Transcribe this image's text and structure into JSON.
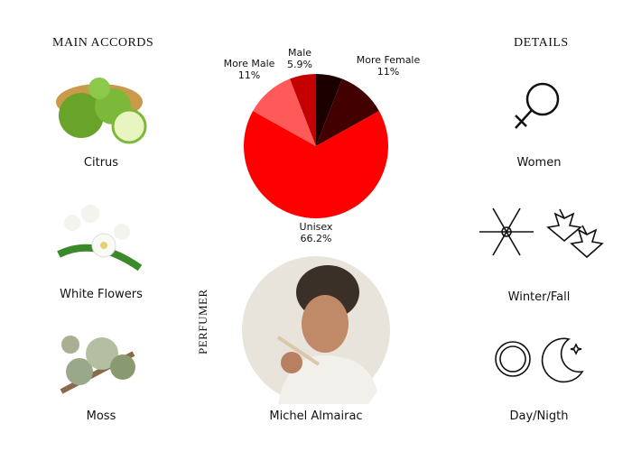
{
  "left": {
    "title": "MAIN ACCORDS",
    "items": [
      {
        "label": "Citrus",
        "icon": "citrus-image"
      },
      {
        "label": "White Flowers",
        "icon": "white-flowers-image"
      },
      {
        "label": "Moss",
        "icon": "moss-image"
      }
    ]
  },
  "right": {
    "title": "DETAILS",
    "items": [
      {
        "label": "Women",
        "icon": "female-symbol-icon"
      },
      {
        "label": "Winter/Fall",
        "icon": "snowflake-leaves-icon"
      },
      {
        "label": "Day/Nigth",
        "icon": "sun-moon-icon"
      }
    ]
  },
  "perfumer": {
    "title": "PERFUMER",
    "name": "Michel Almairac"
  },
  "chart_data": {
    "type": "pie",
    "slices": [
      {
        "name": "",
        "value": 5.9,
        "label": "",
        "color": "#1c0000"
      },
      {
        "name": "More Female",
        "value": 11,
        "label": "11%",
        "color": "#420000"
      },
      {
        "name": "Unisex",
        "value": 66.2,
        "label": "66.2%",
        "color": "#ff0000"
      },
      {
        "name": "More Male",
        "value": 11,
        "label": "11%",
        "color": "#ff5a5a"
      },
      {
        "name": "Male",
        "value": 5.9,
        "label": "5.9%",
        "color": "#c40000"
      }
    ]
  }
}
